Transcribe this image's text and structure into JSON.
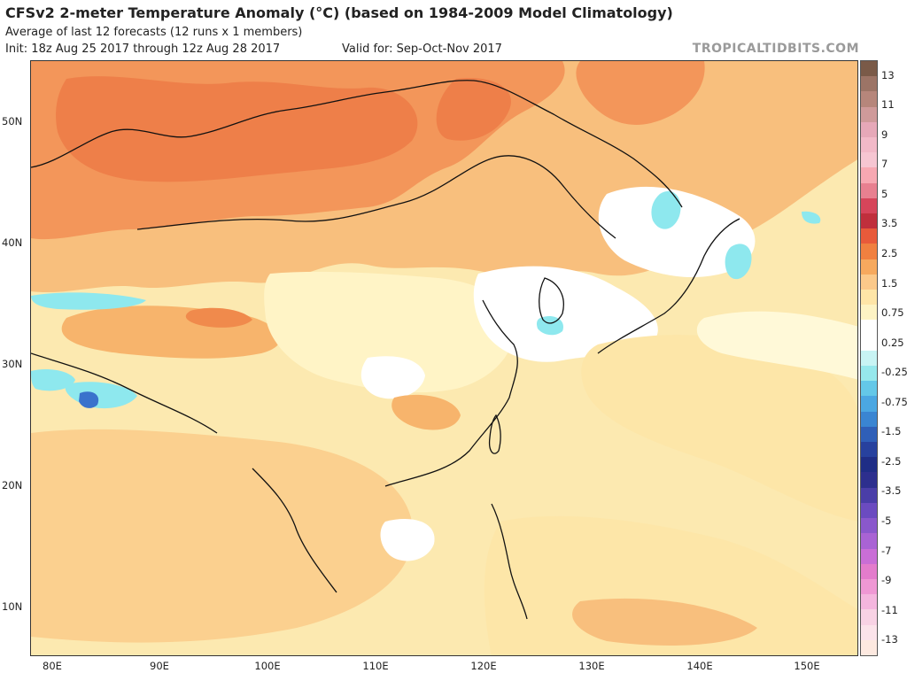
{
  "header": {
    "title": "CFSv2 2-meter Temperature Anomaly (°C) (based on 1984-2009 Model Climatology)",
    "subtitle": "Average of last 12 forecasts (12 runs x 1 members)",
    "init": "Init: 18z Aug 25 2017 through 12z Aug 28 2017",
    "valid": "Valid for: Sep-Oct-Nov 2017",
    "brand": "TROPICALTIDBITS.COM"
  },
  "axes": {
    "lat_labels": [
      "50N",
      "40N",
      "30N",
      "20N",
      "10N"
    ],
    "lon_labels": [
      "80E",
      "90E",
      "100E",
      "110E",
      "120E",
      "130E",
      "140E",
      "150E"
    ]
  },
  "colorbar": {
    "labels": [
      "13",
      "11",
      "9",
      "7",
      "5",
      "3.5",
      "2.5",
      "1.5",
      "0.75",
      "0.25",
      "-0.25",
      "-0.75",
      "-1.5",
      "-2.5",
      "-3.5",
      "-5",
      "-7",
      "-9",
      "-11",
      "-13"
    ],
    "colors": [
      "#7a5a48",
      "#9c7466",
      "#b6867b",
      "#cf9a9a",
      "#e6a8b8",
      "#f2b9c8",
      "#f6c6d2",
      "#f7a8b2",
      "#e88090",
      "#d6455a",
      "#c02f3c",
      "#e85a3a",
      "#f08040",
      "#f6a95e",
      "#fbc98a",
      "#fee5a7",
      "#fdf3c4",
      "#ffffff",
      "#ffffff",
      "#c8f4f4",
      "#96e8ec",
      "#64c8e8",
      "#4ba7e2",
      "#3a85d2",
      "#2f5fb8",
      "#27419e",
      "#1f2d86",
      "#2d2f8e",
      "#4a3ea8",
      "#6b4bc0",
      "#8a58cc",
      "#a963d4",
      "#c96ed6",
      "#e37ccc",
      "#ef98d4",
      "#f4b6de",
      "#f8d2e4",
      "#fbe3ea",
      "#fde9e0"
    ]
  },
  "map": {
    "background": "#fce9b0",
    "anomaly_colors": {
      "strong_warm": "#f08a4c",
      "warm": "#f7b46c",
      "mild_warm": "#fbd08f",
      "slight_warm": "#fde6a8",
      "near_zero": "#fff9d8",
      "neutral": "#ffffff",
      "cool": "#8ee8ee",
      "cooler": "#4fb6e4",
      "coolest": "#3a72cc"
    }
  }
}
